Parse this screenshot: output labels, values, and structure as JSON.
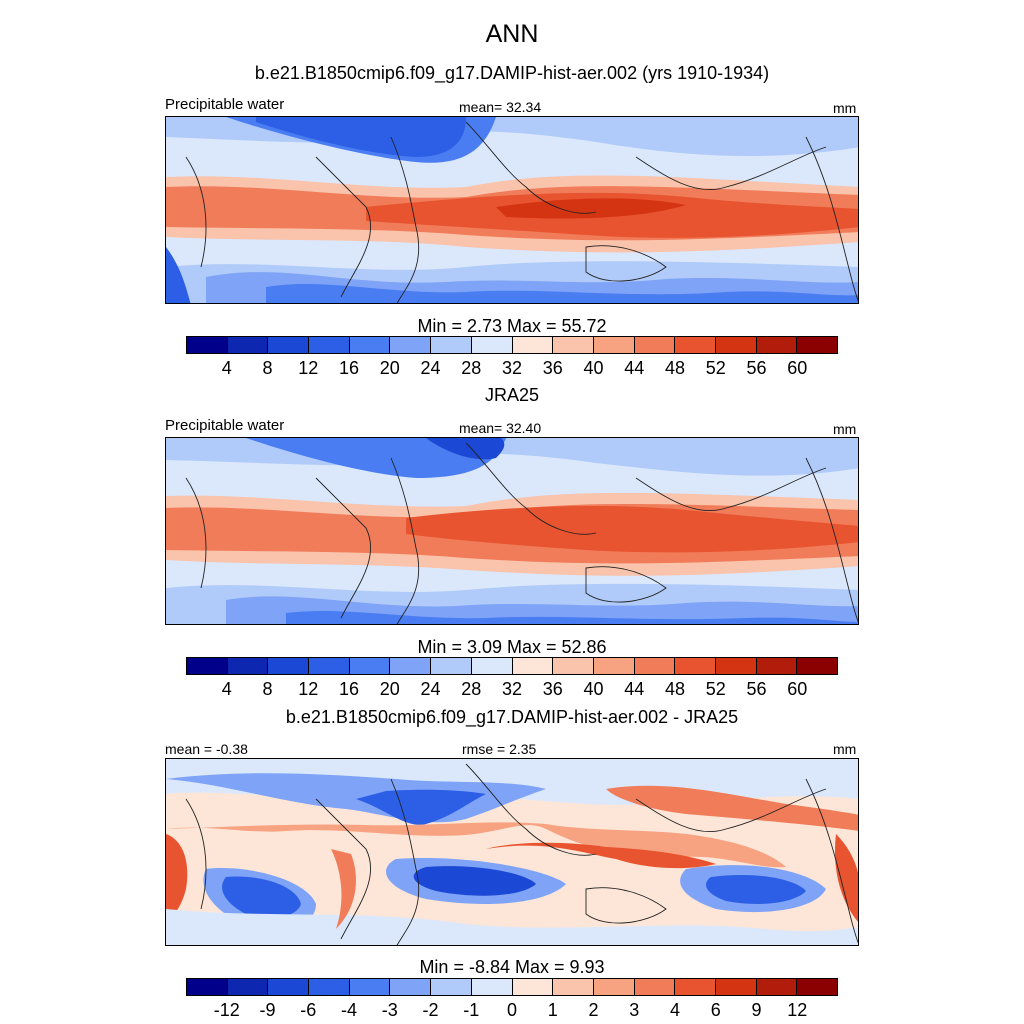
{
  "header": {
    "season": "ANN",
    "case_title": "b.e21.B1850cmip6.f09_g17.DAMIP-hist-aer.002 (yrs 1910-1934)"
  },
  "palette_abs": [
    "#00008b",
    "#0d27b0",
    "#1b48d4",
    "#2d5fe6",
    "#4a7df2",
    "#7ea3f7",
    "#b0caf9",
    "#dbe8fc",
    "#fde6d7",
    "#fac3ab",
    "#f7a281",
    "#f17c59",
    "#e8542f",
    "#d53413",
    "#b11d0a",
    "#8b0000"
  ],
  "panels": [
    {
      "id": "model",
      "variable": "Precipitable water",
      "mean_text": "mean=  32.34",
      "units": "mm",
      "stats_text": "Min =    2.73 Max =   55.72",
      "ticks": [
        "4",
        "8",
        "12",
        "16",
        "20",
        "24",
        "28",
        "32",
        "36",
        "40",
        "44",
        "48",
        "52",
        "56",
        "60"
      ]
    },
    {
      "id": "obs",
      "title": "JRA25",
      "variable": "Precipitable water",
      "mean_text": "mean=  32.40",
      "units": "mm",
      "stats_text": "Min =    3.09 Max =   52.86",
      "ticks": [
        "4",
        "8",
        "12",
        "16",
        "20",
        "24",
        "28",
        "32",
        "36",
        "40",
        "44",
        "48",
        "52",
        "56",
        "60"
      ]
    },
    {
      "id": "diff",
      "title": "b.e21.B1850cmip6.f09_g17.DAMIP-hist-aer.002 - JRA25",
      "mean_text": "mean =  -0.38",
      "rmse_text": "rmse =    2.35",
      "units": "mm",
      "stats_text": "Min =   -8.84 Max =    9.93",
      "ticks": [
        "-12",
        "-9",
        "-6",
        "-4",
        "-3",
        "-2",
        "-1",
        "0",
        "1",
        "2",
        "3",
        "4",
        "6",
        "9",
        "12"
      ]
    }
  ],
  "chart_data": [
    {
      "type": "heatmap",
      "title": "ANN",
      "subtitle": "b.e21.B1850cmip6.f09_g17.DAMIP-hist-aer.002 (yrs 1910-1934)",
      "variable": "Precipitable water",
      "units": "mm",
      "mean": 32.34,
      "min": 2.73,
      "max": 55.72,
      "contour_levels": [
        4,
        8,
        12,
        16,
        20,
        24,
        28,
        32,
        36,
        40,
        44,
        48,
        52,
        56,
        60
      ]
    },
    {
      "type": "heatmap",
      "title": "JRA25",
      "variable": "Precipitable water",
      "units": "mm",
      "mean": 32.4,
      "min": 3.09,
      "max": 52.86,
      "contour_levels": [
        4,
        8,
        12,
        16,
        20,
        24,
        28,
        32,
        36,
        40,
        44,
        48,
        52,
        56,
        60
      ]
    },
    {
      "type": "heatmap",
      "title": "b.e21.B1850cmip6.f09_g17.DAMIP-hist-aer.002 - JRA25",
      "units": "mm",
      "mean": -0.38,
      "rmse": 2.35,
      "min": -8.84,
      "max": 9.93,
      "contour_levels": [
        -12,
        -9,
        -6,
        -4,
        -3,
        -2,
        -1,
        0,
        1,
        2,
        3,
        4,
        6,
        9,
        12
      ]
    }
  ]
}
